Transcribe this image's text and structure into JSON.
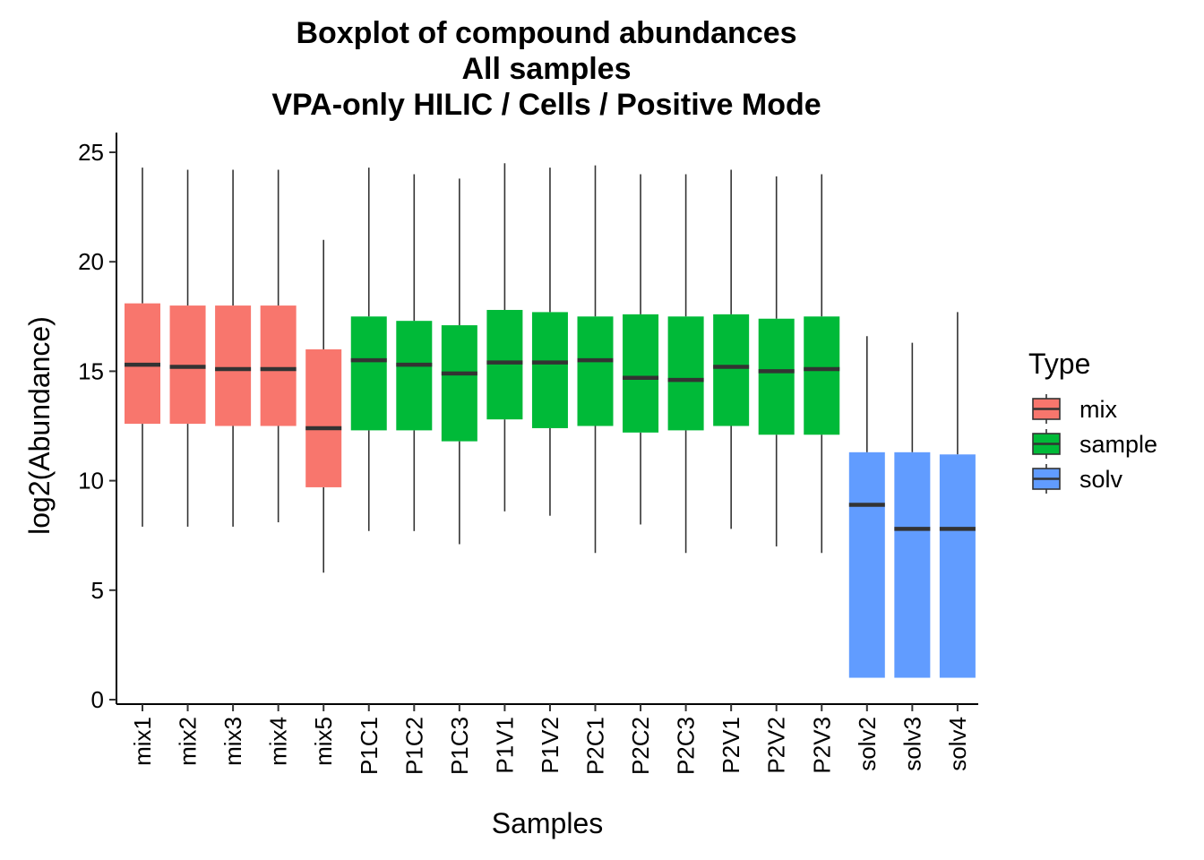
{
  "chart_data": {
    "type": "boxplot",
    "title_lines": [
      "Boxplot of compound abundances",
      "All samples",
      "VPA-only HILIC / Cells / Positive Mode"
    ],
    "xlabel": "Samples",
    "ylabel": "log2(Abundance)",
    "ylim": [
      0,
      25.6
    ],
    "yticks": [
      0,
      5,
      10,
      15,
      20,
      25
    ],
    "grid": false,
    "legend": {
      "title": "Type",
      "position": "right",
      "entries": [
        {
          "name": "mix",
          "color": "#F8766D"
        },
        {
          "name": "sample",
          "color": "#00BA38"
        },
        {
          "name": "solv",
          "color": "#619CFF"
        }
      ]
    },
    "categories": [
      "mix1",
      "mix2",
      "mix3",
      "mix4",
      "mix5",
      "P1C1",
      "P1C2",
      "P1C3",
      "P1V1",
      "P1V2",
      "P2C1",
      "P2C2",
      "P2C3",
      "P2V1",
      "P2V2",
      "P2V3",
      "solv2",
      "solv3",
      "solv4"
    ],
    "boxes": [
      {
        "sample": "mix1",
        "type": "mix",
        "min": 7.9,
        "q1": 12.6,
        "median": 15.3,
        "q3": 18.1,
        "max": 24.3
      },
      {
        "sample": "mix2",
        "type": "mix",
        "min": 7.9,
        "q1": 12.6,
        "median": 15.2,
        "q3": 18.0,
        "max": 24.2
      },
      {
        "sample": "mix3",
        "type": "mix",
        "min": 7.9,
        "q1": 12.5,
        "median": 15.1,
        "q3": 18.0,
        "max": 24.2
      },
      {
        "sample": "mix4",
        "type": "mix",
        "min": 8.1,
        "q1": 12.5,
        "median": 15.1,
        "q3": 18.0,
        "max": 24.2
      },
      {
        "sample": "mix5",
        "type": "mix",
        "min": 5.8,
        "q1": 9.7,
        "median": 12.4,
        "q3": 16.0,
        "max": 21.0
      },
      {
        "sample": "P1C1",
        "type": "sample",
        "min": 7.7,
        "q1": 12.3,
        "median": 15.5,
        "q3": 17.5,
        "max": 24.3
      },
      {
        "sample": "P1C2",
        "type": "sample",
        "min": 7.7,
        "q1": 12.3,
        "median": 15.3,
        "q3": 17.3,
        "max": 24.0
      },
      {
        "sample": "P1C3",
        "type": "sample",
        "min": 7.1,
        "q1": 11.8,
        "median": 14.9,
        "q3": 17.1,
        "max": 23.8
      },
      {
        "sample": "P1V1",
        "type": "sample",
        "min": 8.6,
        "q1": 12.8,
        "median": 15.4,
        "q3": 17.8,
        "max": 24.5
      },
      {
        "sample": "P1V2",
        "type": "sample",
        "min": 8.4,
        "q1": 12.4,
        "median": 15.4,
        "q3": 17.7,
        "max": 24.3
      },
      {
        "sample": "P2C1",
        "type": "sample",
        "min": 6.7,
        "q1": 12.5,
        "median": 15.5,
        "q3": 17.5,
        "max": 24.4
      },
      {
        "sample": "P2C2",
        "type": "sample",
        "min": 8.0,
        "q1": 12.2,
        "median": 14.7,
        "q3": 17.6,
        "max": 24.0
      },
      {
        "sample": "P2C3",
        "type": "sample",
        "min": 6.7,
        "q1": 12.3,
        "median": 14.6,
        "q3": 17.5,
        "max": 24.0
      },
      {
        "sample": "P2V1",
        "type": "sample",
        "min": 7.8,
        "q1": 12.5,
        "median": 15.2,
        "q3": 17.6,
        "max": 24.2
      },
      {
        "sample": "P2V2",
        "type": "sample",
        "min": 7.0,
        "q1": 12.1,
        "median": 15.0,
        "q3": 17.4,
        "max": 23.9
      },
      {
        "sample": "P2V3",
        "type": "sample",
        "min": 6.7,
        "q1": 12.1,
        "median": 15.1,
        "q3": 17.5,
        "max": 24.0
      },
      {
        "sample": "solv2",
        "type": "solv",
        "min": 1.0,
        "q1": 1.0,
        "median": 8.9,
        "q3": 11.3,
        "max": 16.6
      },
      {
        "sample": "solv3",
        "type": "solv",
        "min": 1.0,
        "q1": 1.0,
        "median": 7.8,
        "q3": 11.3,
        "max": 16.3
      },
      {
        "sample": "solv4",
        "type": "solv",
        "min": 1.0,
        "q1": 1.0,
        "median": 7.8,
        "q3": 11.2,
        "max": 17.7
      }
    ]
  }
}
